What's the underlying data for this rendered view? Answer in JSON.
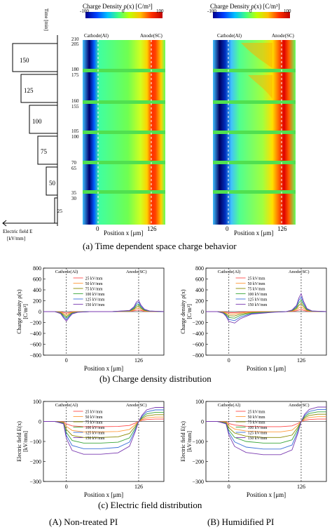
{
  "panel_a": {
    "colorbar_title_left": "Charge Density ρ(x) [C/m³]",
    "colorbar_title_right": "Charge Density ρ(x) [C/m³]",
    "colorbar_ticks": [
      "-100",
      "0",
      "100"
    ],
    "time_axis_label": "Time [min]",
    "time_ticks": [
      "210",
      "205",
      "180",
      "175",
      "160",
      "155",
      "105",
      "100",
      "70",
      "65",
      "35",
      "30"
    ],
    "field_levels": [
      "150",
      "125",
      "100",
      "75",
      "50",
      "25"
    ],
    "field_axis_label_1": "Electric field  E",
    "field_axis_label_2": "[kV/mm]",
    "cathode_label": "Cathode(Al)",
    "anode_label": "Anode(SC)",
    "x_tick_0": "0",
    "x_tick_126": "126",
    "x_label": "Position x [μm]",
    "caption": "(a) Time dependent space charge behavior"
  },
  "panel_b": {
    "caption": "(b) Charge density distribution",
    "ylabel_1": "Charge density ρ(x)",
    "ylabel_2": "[C/m³]",
    "xlabel": "Position x [μm]",
    "yticks": [
      "800",
      "600",
      "400",
      "200",
      "0",
      "−200",
      "−400",
      "−600",
      "−800"
    ],
    "xticks": [
      "0",
      "126"
    ],
    "cathode_label": "Cathode(Al)",
    "anode_label": "Anode(SC)",
    "legend": [
      "25 kV/mm",
      "50 kV/mm",
      "75 kV/mm",
      "100 kV/mm",
      "125 kV/mm",
      "150 kV/mm"
    ]
  },
  "panel_c": {
    "caption": "(c) Electric field distribution",
    "ylabel_1": "Electric field E(x)",
    "ylabel_2": "[kV/mm]",
    "xlabel": "Position x [μm]",
    "yticks": [
      "100",
      "0",
      "−100",
      "−200",
      "−300"
    ],
    "xticks": [
      "0",
      "126"
    ],
    "cathode_label": "Cathode(Al)",
    "anode_label": "Anode(SC)",
    "legend": [
      "25 kV/mm",
      "50 kV/mm",
      "75 kV/mm",
      "100 kV/mm",
      "125 kV/mm",
      "150 kV/mm"
    ]
  },
  "bottom": {
    "left_caption": "(A) Non-treated PI",
    "right_caption": "(B) Humidified PI"
  },
  "colors": {
    "series": [
      "#ff4a4a",
      "#ff9a3a",
      "#8a8a00",
      "#3aa63a",
      "#3a6fd8",
      "#7a3ab0"
    ]
  },
  "chart_data": [
    {
      "type": "line",
      "name": "charge-density-non-treated",
      "x_units": "μm",
      "xlim": [
        -40,
        170
      ],
      "ylim": [
        -800,
        800
      ],
      "x": [
        -40,
        -20,
        -10,
        -5,
        0,
        5,
        10,
        20,
        40,
        80,
        110,
        118,
        122,
        126,
        130,
        136,
        145,
        170
      ],
      "series": [
        {
          "name": "25 kV/mm",
          "values": [
            0,
            0,
            -5,
            -15,
            -25,
            -15,
            -5,
            0,
            0,
            0,
            5,
            15,
            25,
            30,
            20,
            8,
            2,
            0
          ]
        },
        {
          "name": "50 kV/mm",
          "values": [
            0,
            0,
            -10,
            -35,
            -55,
            -30,
            -12,
            -3,
            0,
            0,
            8,
            30,
            55,
            65,
            40,
            15,
            4,
            0
          ]
        },
        {
          "name": "75 kV/mm",
          "values": [
            0,
            0,
            -18,
            -55,
            -85,
            -50,
            -20,
            -5,
            0,
            0,
            12,
            45,
            85,
            100,
            60,
            22,
            6,
            0
          ]
        },
        {
          "name": "100 kV/mm",
          "values": [
            0,
            0,
            -25,
            -75,
            -115,
            -70,
            -28,
            -7,
            0,
            0,
            15,
            60,
            115,
            135,
            80,
            30,
            8,
            0
          ]
        },
        {
          "name": "125 kV/mm",
          "values": [
            0,
            0,
            -32,
            -95,
            -145,
            -88,
            -35,
            -9,
            0,
            0,
            18,
            75,
            145,
            170,
            100,
            38,
            10,
            0
          ]
        },
        {
          "name": "150 kV/mm",
          "values": [
            0,
            0,
            -38,
            -115,
            -175,
            -105,
            -42,
            -11,
            0,
            0,
            22,
            90,
            175,
            205,
            120,
            45,
            12,
            0
          ]
        }
      ]
    },
    {
      "type": "line",
      "name": "charge-density-humidified",
      "x_units": "μm",
      "xlim": [
        -40,
        170
      ],
      "ylim": [
        -800,
        800
      ],
      "x": [
        -40,
        -20,
        -10,
        -5,
        0,
        10,
        20,
        40,
        80,
        100,
        110,
        118,
        122,
        126,
        130,
        136,
        145,
        170
      ],
      "series": [
        {
          "name": "25 kV/mm",
          "values": [
            0,
            0,
            -5,
            -10,
            -20,
            -20,
            -10,
            -3,
            0,
            0,
            5,
            15,
            30,
            40,
            25,
            8,
            2,
            0
          ]
        },
        {
          "name": "50 kV/mm",
          "values": [
            0,
            0,
            -10,
            -25,
            -45,
            -45,
            -25,
            -8,
            0,
            0,
            10,
            35,
            70,
            90,
            55,
            18,
            4,
            0
          ]
        },
        {
          "name": "75 kV/mm",
          "values": [
            0,
            0,
            -15,
            -40,
            -75,
            -80,
            -45,
            -15,
            -2,
            0,
            15,
            55,
            115,
            150,
            90,
            28,
            6,
            0
          ]
        },
        {
          "name": "100 kV/mm",
          "values": [
            0,
            0,
            -20,
            -55,
            -110,
            -120,
            -70,
            -25,
            -5,
            0,
            20,
            75,
            160,
            210,
            125,
            38,
            8,
            0
          ]
        },
        {
          "name": "125 kV/mm",
          "values": [
            0,
            0,
            -25,
            -70,
            -145,
            -165,
            -100,
            -35,
            -8,
            0,
            25,
            95,
            205,
            270,
            160,
            48,
            10,
            0
          ]
        },
        {
          "name": "150 kV/mm",
          "values": [
            0,
            0,
            -30,
            -85,
            -180,
            -210,
            -130,
            -45,
            -10,
            0,
            30,
            115,
            250,
            330,
            195,
            58,
            12,
            0
          ]
        }
      ]
    },
    {
      "type": "line",
      "name": "electric-field-non-treated",
      "x_units": "μm",
      "xlim": [
        -40,
        170
      ],
      "ylim": [
        -300,
        100
      ],
      "x": [
        -40,
        -20,
        -5,
        0,
        10,
        30,
        60,
        90,
        110,
        120,
        126,
        132,
        140,
        155,
        170
      ],
      "series": [
        {
          "name": "25 kV/mm",
          "values": [
            0,
            0,
            -2,
            -12,
            -22,
            -26,
            -26,
            -25,
            -20,
            -8,
            0,
            6,
            10,
            12,
            12
          ]
        },
        {
          "name": "50 kV/mm",
          "values": [
            0,
            0,
            -4,
            -25,
            -45,
            -52,
            -52,
            -50,
            -40,
            -16,
            0,
            10,
            18,
            22,
            22
          ]
        },
        {
          "name": "75 kV/mm",
          "values": [
            0,
            0,
            -6,
            -40,
            -70,
            -80,
            -80,
            -77,
            -60,
            -25,
            0,
            15,
            28,
            34,
            34
          ]
        },
        {
          "name": "100 kV/mm",
          "values": [
            0,
            0,
            -8,
            -55,
            -95,
            -108,
            -108,
            -104,
            -82,
            -34,
            0,
            20,
            38,
            46,
            46
          ]
        },
        {
          "name": "125 kV/mm",
          "values": [
            0,
            0,
            -10,
            -70,
            -120,
            -136,
            -136,
            -130,
            -103,
            -43,
            0,
            26,
            48,
            58,
            58
          ]
        },
        {
          "name": "150 kV/mm",
          "values": [
            0,
            0,
            -12,
            -85,
            -145,
            -164,
            -164,
            -157,
            -124,
            -52,
            0,
            32,
            58,
            70,
            70
          ]
        }
      ]
    },
    {
      "type": "line",
      "name": "electric-field-humidified",
      "x_units": "μm",
      "xlim": [
        -40,
        170
      ],
      "ylim": [
        -300,
        100
      ],
      "x": [
        -40,
        -20,
        -5,
        0,
        10,
        30,
        60,
        90,
        110,
        120,
        126,
        132,
        140,
        155,
        170
      ],
      "series": [
        {
          "name": "25 kV/mm",
          "values": [
            0,
            0,
            -2,
            -10,
            -18,
            -24,
            -26,
            -26,
            -22,
            -10,
            0,
            6,
            10,
            12,
            12
          ]
        },
        {
          "name": "50 kV/mm",
          "values": [
            0,
            0,
            -4,
            -20,
            -38,
            -48,
            -52,
            -52,
            -44,
            -20,
            0,
            12,
            20,
            24,
            24
          ]
        },
        {
          "name": "75 kV/mm",
          "values": [
            0,
            0,
            -6,
            -32,
            -58,
            -74,
            -80,
            -80,
            -68,
            -30,
            0,
            18,
            30,
            36,
            36
          ]
        },
        {
          "name": "100 kV/mm",
          "values": [
            0,
            0,
            -8,
            -44,
            -80,
            -100,
            -108,
            -108,
            -92,
            -40,
            0,
            24,
            40,
            48,
            48
          ]
        },
        {
          "name": "125 kV/mm",
          "values": [
            0,
            0,
            -10,
            -56,
            -102,
            -128,
            -138,
            -138,
            -118,
            -52,
            0,
            30,
            50,
            60,
            60
          ]
        },
        {
          "name": "150 kV/mm",
          "values": [
            0,
            0,
            -12,
            -68,
            -125,
            -155,
            -166,
            -166,
            -142,
            -62,
            0,
            36,
            60,
            72,
            72
          ]
        }
      ]
    }
  ]
}
